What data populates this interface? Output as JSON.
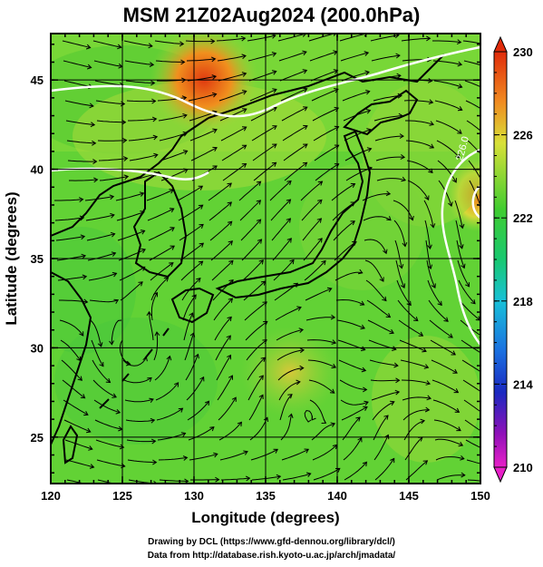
{
  "title": "MSM 21Z02Aug2024 (200.0hPa)",
  "credits": {
    "line1": "Drawing by DCL (https://www.gfd-dennou.org/library/dcl/)",
    "line2": "Data from http://database.rish.kyoto-u.ac.jp/arch/jmadata/"
  },
  "map": {
    "xlabel": "Longitude (degrees)",
    "ylabel": "Latitude  (degrees)",
    "lon_range": [
      120,
      150
    ],
    "lat_range": [
      22.4,
      47.6
    ],
    "lon_ticks": [
      "120",
      "125",
      "130",
      "135",
      "140",
      "145",
      "150"
    ],
    "lat_ticks": [
      "25",
      "30",
      "35",
      "40",
      "45"
    ],
    "contour_label": "226.0",
    "colors": {
      "base": "#5fd633",
      "warm": "#e8a020",
      "hot": "#e04010",
      "cool": "#22c455"
    }
  },
  "colorbar": {
    "labels": [
      "230",
      "226",
      "222",
      "218",
      "214",
      "210"
    ],
    "min": 210,
    "max": 230,
    "stops": [
      "#e02b0a",
      "#f08020",
      "#c8e040",
      "#48cc30",
      "#20c8a0",
      "#1a90e0",
      "#1a30c8",
      "#8010b0",
      "#e020c0"
    ]
  }
}
